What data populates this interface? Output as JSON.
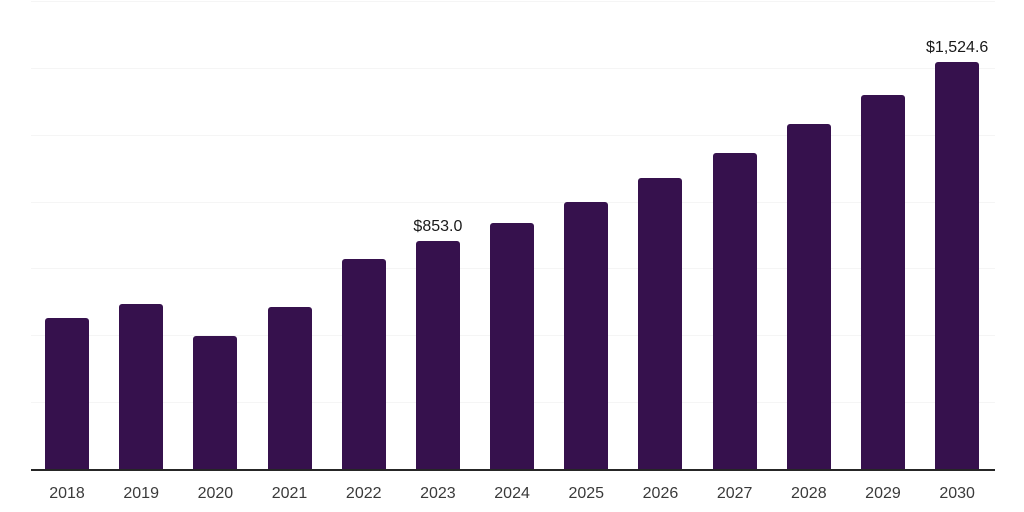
{
  "chart_data": {
    "type": "bar",
    "title": "",
    "xlabel": "",
    "ylabel": "",
    "categories": [
      "2018",
      "2019",
      "2020",
      "2021",
      "2022",
      "2023",
      "2024",
      "2025",
      "2026",
      "2027",
      "2028",
      "2029",
      "2030"
    ],
    "values": [
      568,
      619,
      501,
      606,
      788,
      853.0,
      922,
      1002,
      1091,
      1182,
      1292,
      1401,
      1524.6
    ],
    "point_labels": [
      "",
      "",
      "",
      "",
      "",
      "$853.0",
      "",
      "",
      "",
      "",
      "",
      "",
      "$1,524.6"
    ],
    "ylim": [
      0,
      1750
    ],
    "gridline_step": 250,
    "grid": "horizontal-only",
    "legend_position": "none",
    "colors": {
      "bar_fill": "#36114D",
      "background": "#ffffff",
      "gridline": "#f5f5f5",
      "axis_line": "#262626",
      "point_label_text": "#1a1a1a",
      "tick_label_text": "#3a3a3a"
    }
  }
}
